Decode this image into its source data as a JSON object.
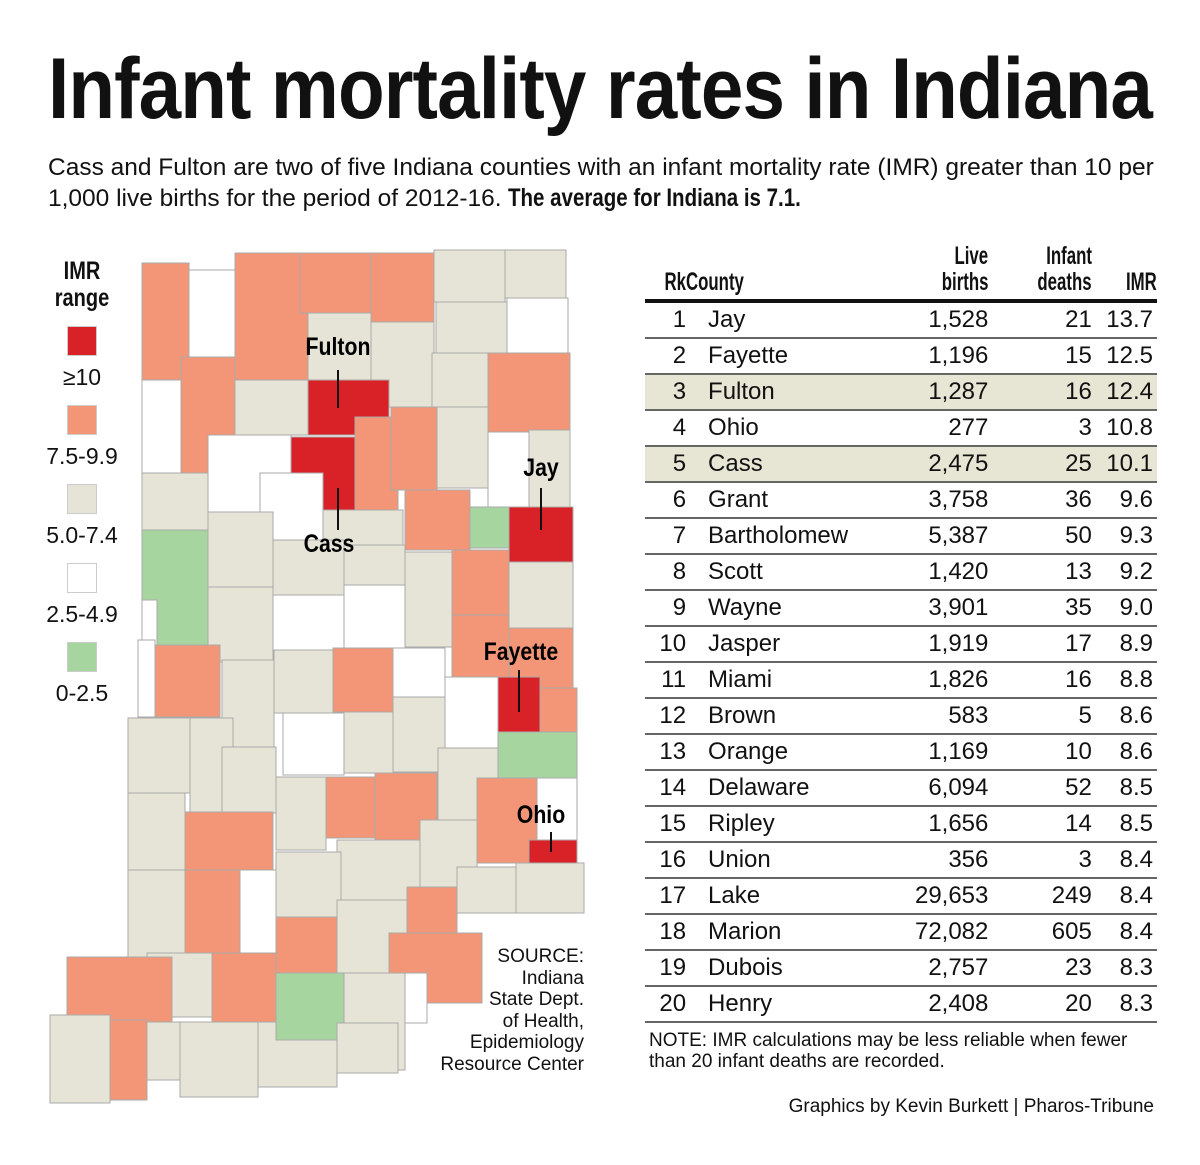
{
  "title": "Infant mortality rates in Indiana",
  "subtitle": {
    "text": "Cass and Fulton are two of five Indiana counties with an infant mortality rate (IMR) greater than 10 per 1,000 live births for the period of 2012-16.",
    "emphasis": "The average for Indiana is 7.1."
  },
  "legend": {
    "title_line1": "IMR",
    "title_line2": "range",
    "items": [
      {
        "label": "≥10",
        "color": "#d92128"
      },
      {
        "label": "7.5-9.9",
        "color": "#f29677"
      },
      {
        "label": "5.0-7.4",
        "color": "#e6e4d6"
      },
      {
        "label": "2.5-4.9",
        "color": "#ffffff"
      },
      {
        "label": "0-2.5",
        "color": "#a6d5a0"
      }
    ]
  },
  "map_labels": [
    "Fulton",
    "Cass",
    "Jay",
    "Fayette",
    "Ohio"
  ],
  "source": [
    "SOURCE:",
    "Indiana",
    "State Dept.",
    "of Health,",
    "Epidemiology",
    "Resource Center"
  ],
  "chart_data": {
    "type": "table",
    "columns": [
      "Rk",
      "County",
      "Live births",
      "Infant deaths",
      "IMR"
    ],
    "column_lines": [
      [
        "",
        "Rk"
      ],
      [
        "",
        "County"
      ],
      [
        "Live",
        "births"
      ],
      [
        "Infant",
        "deaths"
      ],
      [
        "",
        "IMR"
      ]
    ],
    "highlighted_counties": [
      "Fulton",
      "Cass"
    ],
    "rows": [
      [
        "1",
        "Jay",
        "1,528",
        "21",
        "13.7"
      ],
      [
        "2",
        "Fayette",
        "1,196",
        "15",
        "12.5"
      ],
      [
        "3",
        "Fulton",
        "1,287",
        "16",
        "12.4"
      ],
      [
        "4",
        "Ohio",
        "277",
        "3",
        "10.8"
      ],
      [
        "5",
        "Cass",
        "2,475",
        "25",
        "10.1"
      ],
      [
        "6",
        "Grant",
        "3,758",
        "36",
        "9.6"
      ],
      [
        "7",
        "Bartholomew",
        "5,387",
        "50",
        "9.3"
      ],
      [
        "8",
        "Scott",
        "1,420",
        "13",
        "9.2"
      ],
      [
        "9",
        "Wayne",
        "3,901",
        "35",
        "9.0"
      ],
      [
        "10",
        "Jasper",
        "1,919",
        "17",
        "8.9"
      ],
      [
        "11",
        "Miami",
        "1,826",
        "16",
        "8.8"
      ],
      [
        "12",
        "Brown",
        "583",
        "5",
        "8.6"
      ],
      [
        "13",
        "Orange",
        "1,169",
        "10",
        "8.6"
      ],
      [
        "14",
        "Delaware",
        "6,094",
        "52",
        "8.5"
      ],
      [
        "15",
        "Ripley",
        "1,656",
        "14",
        "8.5"
      ],
      [
        "16",
        "Union",
        "356",
        "3",
        "8.4"
      ],
      [
        "17",
        "Lake",
        "29,653",
        "249",
        "8.4"
      ],
      [
        "18",
        "Marion",
        "72,082",
        "605",
        "8.4"
      ],
      [
        "19",
        "Dubois",
        "2,757",
        "23",
        "8.3"
      ],
      [
        "20",
        "Henry",
        "2,408",
        "20",
        "8.3"
      ]
    ]
  },
  "note": "NOTE: IMR calculations may be less reliable when fewer than 20 infant deaths are recorded.",
  "credit": "Graphics by Kevin Burkett | Pharos-Tribune"
}
